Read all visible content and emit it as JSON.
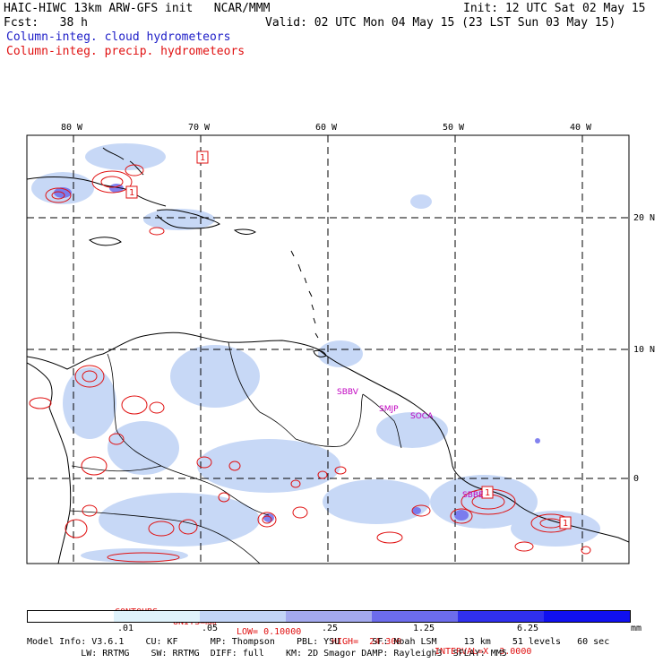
{
  "header": {
    "line1_left": "HAIC-HIWC 13km ARW-GFS init   NCAR/MMM",
    "line1_right": "Init: 12 UTC Sat 02 May 15",
    "line2_left": "Fcst:   38 h",
    "line2_right": "Valid: 02 UTC Mon 04 May 15 (23 LST Sun 03 May 15)",
    "field_cloud": "Column-integ. cloud hydrometeors",
    "field_precip": "Column-integ. precip. hydrometeors"
  },
  "map": {
    "lon_labels": [
      "80 W",
      "70 W",
      "60 W",
      "50 W",
      "40 W"
    ],
    "lat_labels": [
      "20 N",
      "10 N",
      "0"
    ],
    "stations": [
      "SBBV",
      "SMJP",
      "SOCA",
      "SBBE"
    ],
    "contour_label": "1"
  },
  "contours": {
    "label": "CONTOURS:",
    "units": "UNITS=mm",
    "low": "LOW= 0.10000",
    "high": "HIGH=  24.300",
    "interval": "INTERVAL=X  3.0000"
  },
  "legend": {
    "ticks": [
      ".01",
      ".05",
      ".25",
      "1.25",
      "6.25"
    ],
    "unit": "mm",
    "colors": [
      "#ffffff",
      "#dff2fb",
      "#c2d4f6",
      "#a3a9ee",
      "#6c6cec",
      "#3030ee",
      "#1010f0"
    ]
  },
  "model_info": {
    "line1": "Model Info: V3.6.1    CU: KF      MP: Thompson    PBL: YSU      SF: Noah LSM     13 km    51 levels   60 sec",
    "line2": "          LW: RRTMG    SW: RRTMG  DIFF: full    KM: 2D Smagor DAMP: Rayleigh3  SFLAY: MM5"
  }
}
